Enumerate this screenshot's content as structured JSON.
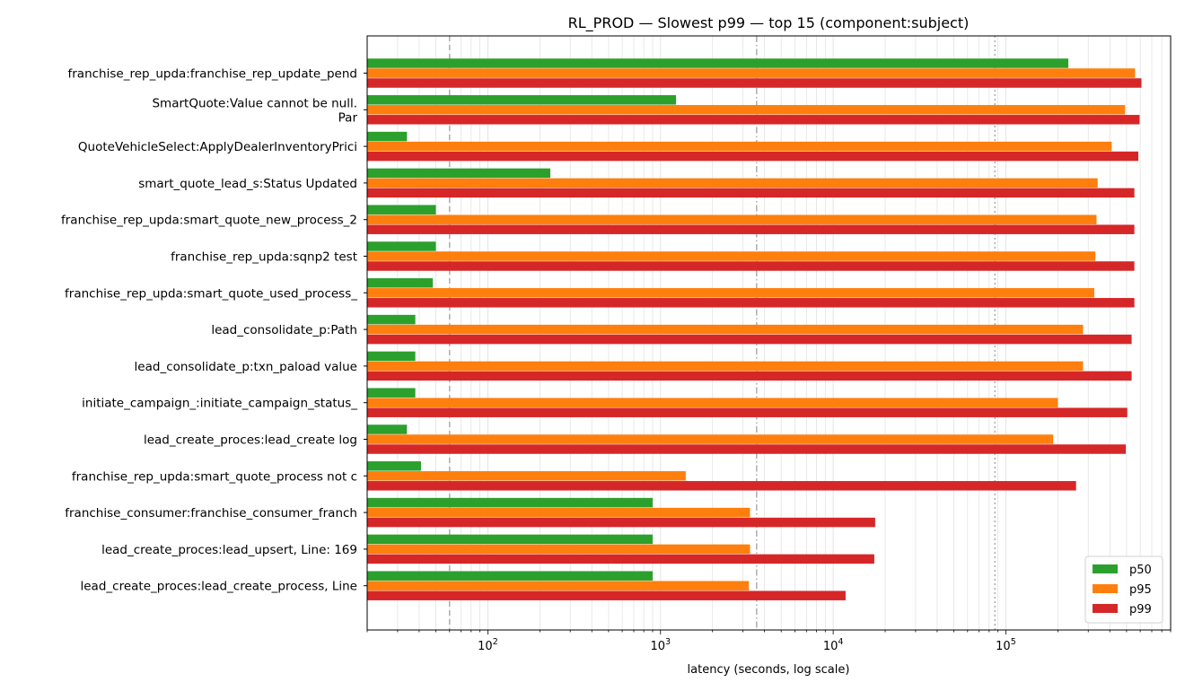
{
  "chart_data": {
    "type": "bar",
    "orientation": "horizontal",
    "title": "RL_PROD — Slowest p99 — top 15 (component:subject)",
    "xlabel": "latency (seconds, log scale)",
    "x_scale": "log",
    "xlim": [
      20,
      900000
    ],
    "x_ticks": [
      {
        "value": 100,
        "base": "10",
        "exp": "2"
      },
      {
        "value": 1000,
        "base": "10",
        "exp": "3"
      },
      {
        "value": 10000,
        "base": "10",
        "exp": "4"
      },
      {
        "value": 100000,
        "base": "10",
        "exp": "5"
      }
    ],
    "grid": "vertical minor and major",
    "reference_lines": [
      {
        "value": 60,
        "style": "dashed"
      },
      {
        "value": 3600,
        "style": "dashdot"
      },
      {
        "value": 86400,
        "style": "dotted"
      }
    ],
    "categories": [
      [
        "franchise_rep_upda:franchise_rep_update_pend"
      ],
      [
        "SmartQuote:Value cannot be null.",
        "Par"
      ],
      [
        "QuoteVehicleSelect:ApplyDealerInventoryPrici"
      ],
      [
        "smart_quote_lead_s:Status Updated"
      ],
      [
        "franchise_rep_upda:smart_quote_new_process_2"
      ],
      [
        "franchise_rep_upda:sqnp2 test"
      ],
      [
        "franchise_rep_upda:smart_quote_used_process_"
      ],
      [
        "lead_consolidate_p:Path"
      ],
      [
        "lead_consolidate_p:txn_paload value"
      ],
      [
        "initiate_campaign_:initiate_campaign_status_"
      ],
      [
        "lead_create_proces:lead_create log"
      ],
      [
        "franchise_rep_upda:smart_quote_process not c"
      ],
      [
        "franchise_consumer:franchise_consumer_franch"
      ],
      [
        "lead_create_proces:lead_upsert, Line: 169"
      ],
      [
        "lead_create_proces:lead_create_process, Line"
      ]
    ],
    "series": [
      {
        "name": "p50",
        "color": "#2ca02c",
        "values": [
          230000,
          1230,
          34,
          230,
          50,
          50,
          48,
          38,
          38,
          38,
          34,
          41,
          900,
          900,
          900
        ]
      },
      {
        "name": "p95",
        "color": "#ff7f0e",
        "values": [
          560000,
          490000,
          410000,
          340000,
          335000,
          330000,
          325000,
          280000,
          280000,
          200000,
          188000,
          1400,
          3300,
          3300,
          3250
        ]
      },
      {
        "name": "p99",
        "color": "#d62728",
        "values": [
          610000,
          595000,
          585000,
          555000,
          555000,
          555000,
          555000,
          535000,
          535000,
          505000,
          495000,
          255000,
          17500,
          17300,
          11800
        ]
      }
    ],
    "legend": "bottom-right"
  }
}
